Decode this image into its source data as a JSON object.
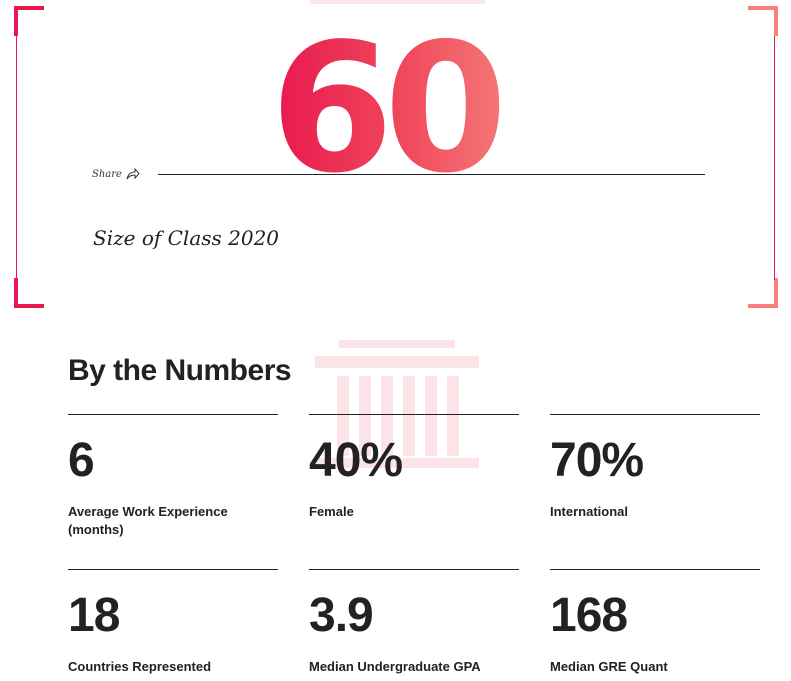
{
  "hero": {
    "value": "60",
    "share_label": "Share",
    "caption": "Size of Class 2020"
  },
  "section": {
    "title": "By the Numbers"
  },
  "stats": [
    {
      "value": "6",
      "label": "Average Work Experience (months)"
    },
    {
      "value": "40%",
      "label": "Female"
    },
    {
      "value": "70%",
      "label": "International"
    },
    {
      "value": "18",
      "label": "Countries Represented"
    },
    {
      "value": "3.9",
      "label": "Median Undergraduate GPA"
    },
    {
      "value": "168",
      "label": "Median GRE Quant"
    }
  ],
  "colors": {
    "accent_start": "#e8174f",
    "accent_end": "#f5807c",
    "text": "#222222"
  },
  "icons": {
    "share": "share-arrow-icon",
    "background": "building-columns-icon"
  }
}
